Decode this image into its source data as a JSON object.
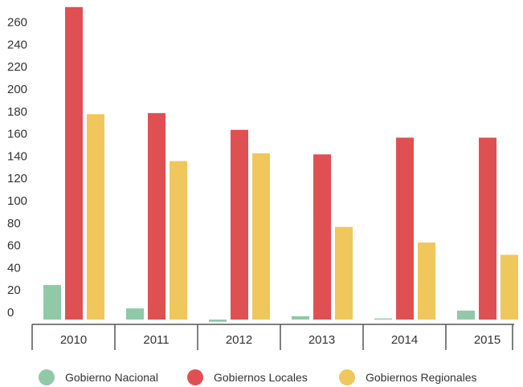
{
  "chart_data": {
    "type": "bar",
    "categories": [
      "2010",
      "2011",
      "2012",
      "2013",
      "2014",
      "2015"
    ],
    "series": [
      {
        "name": "Gobierno Nacional",
        "color": "#8fc9a8",
        "values": [
          31,
          10,
          -2,
          3,
          1,
          8
        ]
      },
      {
        "name": "Gobiernos Locales",
        "color": "#df5053",
        "values": [
          280,
          185,
          170,
          148,
          163,
          163
        ]
      },
      {
        "name": "Gobiernos Regionales",
        "color": "#f0c75c",
        "values": [
          184,
          142,
          149,
          83,
          69,
          58
        ]
      }
    ],
    "yticks": [
      0,
      20,
      40,
      60,
      80,
      100,
      120,
      140,
      160,
      180,
      200,
      220,
      240,
      260
    ],
    "ylim": [
      -5,
      285
    ],
    "title": "",
    "xlabel": "",
    "ylabel": "",
    "grid": false,
    "legend_position": "bottom"
  }
}
